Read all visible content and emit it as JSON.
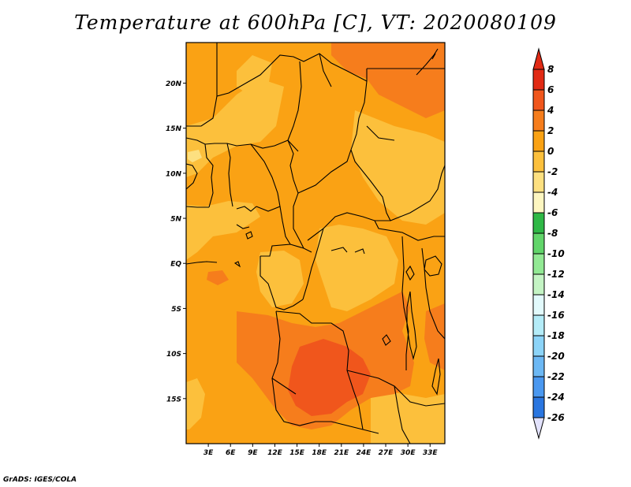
{
  "title": "Temperature at 600hPa [C], VT: 2020080109",
  "credit": "GrADS: IGES/COLA",
  "map": {
    "lon_range": [
      0,
      35
    ],
    "lat_range": [
      -20,
      24.5
    ],
    "lat_ticks": [
      {
        "value": 20,
        "label": "20N"
      },
      {
        "value": 15,
        "label": "15N"
      },
      {
        "value": 10,
        "label": "10N"
      },
      {
        "value": 5,
        "label": "5N"
      },
      {
        "value": 0,
        "label": "EQ"
      },
      {
        "value": -5,
        "label": "5S"
      },
      {
        "value": -10,
        "label": "10S"
      },
      {
        "value": -15,
        "label": "15S"
      }
    ],
    "lon_ticks": [
      {
        "value": 3,
        "label": "3E"
      },
      {
        "value": 6,
        "label": "6E"
      },
      {
        "value": 9,
        "label": "9E"
      },
      {
        "value": 12,
        "label": "12E"
      },
      {
        "value": 15,
        "label": "15E"
      },
      {
        "value": 18,
        "label": "18E"
      },
      {
        "value": 21,
        "label": "21E"
      },
      {
        "value": 24,
        "label": "24E"
      },
      {
        "value": 27,
        "label": "27E"
      },
      {
        "value": 30,
        "label": "30E"
      },
      {
        "value": 33,
        "label": "33E"
      }
    ]
  },
  "colorbar": {
    "labels": [
      "8",
      "6",
      "4",
      "2",
      "0",
      "-2",
      "-4",
      "-6",
      "-8",
      "-10",
      "-12",
      "-14",
      "-16",
      "-18",
      "-20",
      "-22",
      "-24",
      "-26"
    ],
    "colors": [
      "#e12a14",
      "#f0561c",
      "#f67d1c",
      "#faa214",
      "#fcc03c",
      "#fde080",
      "#fdf6c0",
      "#2fb846",
      "#61d56a",
      "#92e994",
      "#c4f4c4",
      "#e2fafc",
      "#b4ecf8",
      "#8cd4f8",
      "#6cb8f4",
      "#4a98f0",
      "#2a76e0",
      "#1a50d0",
      "#1434b4",
      "#0c1a80"
    ],
    "top_arrow_color": "#e12a14",
    "bottom_arrow_color": "#e2e2fc"
  }
}
